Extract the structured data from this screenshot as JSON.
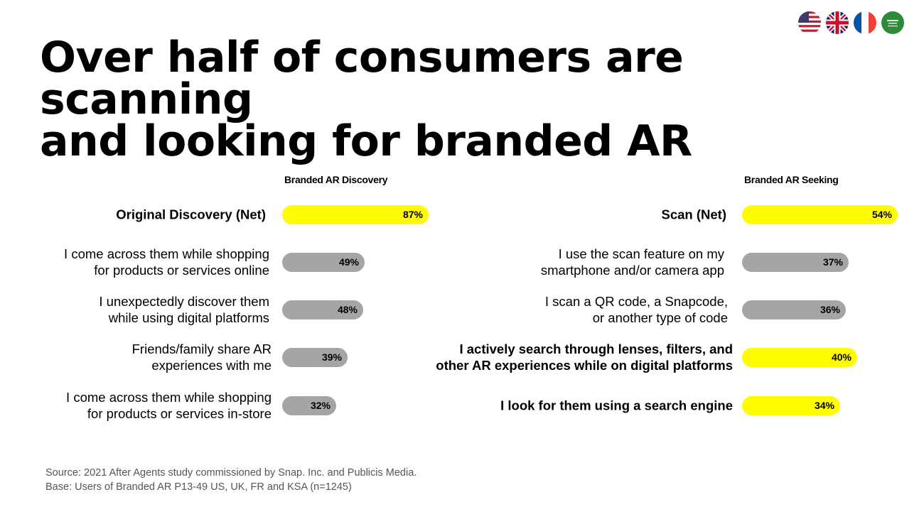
{
  "title": {
    "line1": "Over half of consumers are scanning",
    "line2": "and looking for branded AR"
  },
  "flags": [
    {
      "name": "us-flag-icon"
    },
    {
      "name": "uk-flag-icon"
    },
    {
      "name": "france-flag-icon"
    },
    {
      "name": "saudi-arabia-flag-icon"
    }
  ],
  "chart_data": [
    {
      "type": "bar",
      "title": "Branded AR Discovery",
      "categories": [
        [
          "Original Discovery (Net)"
        ],
        [
          "I come across them while shopping",
          "for products or services online"
        ],
        [
          "I unexpectedly discover them",
          "while using digital platforms"
        ],
        [
          "Friends/family share AR",
          "experiences with me"
        ],
        [
          "I come across them while shopping",
          "for products or services in-store"
        ]
      ],
      "values": [
        87,
        49,
        48,
        39,
        32
      ],
      "value_labels": [
        "87%",
        "49%",
        "48%",
        "39%",
        "32%"
      ],
      "highlight": [
        true,
        false,
        false,
        false,
        false
      ],
      "colors": {
        "highlight": "#FFFC00",
        "other": "#A5A5A5"
      },
      "unit": "%"
    },
    {
      "type": "bar",
      "title": "Branded AR Seeking",
      "categories": [
        [
          "Scan (Net)"
        ],
        [
          "I use the scan feature on my",
          "smartphone and/or camera app"
        ],
        [
          "I scan a QR code, a Snapcode,",
          "or another type of code"
        ],
        [
          "I actively search through lenses, filters, and",
          "other AR experiences while on digital platforms"
        ],
        [
          "I look for them using a search engine"
        ]
      ],
      "values": [
        54,
        37,
        36,
        40,
        34
      ],
      "value_labels": [
        "54%",
        "37%",
        "36%",
        "40%",
        "34%"
      ],
      "highlight": [
        true,
        false,
        false,
        true,
        true
      ],
      "colors": {
        "highlight": "#FFFC00",
        "other": "#A5A5A5"
      },
      "unit": "%"
    }
  ],
  "footnote": {
    "source": "Source: 2021 After Agents study commissioned by Snap. Inc. and Publicis Media.",
    "base": "Base: Users of Branded AR P13-49 US, UK, FR and KSA (n=1245)"
  }
}
